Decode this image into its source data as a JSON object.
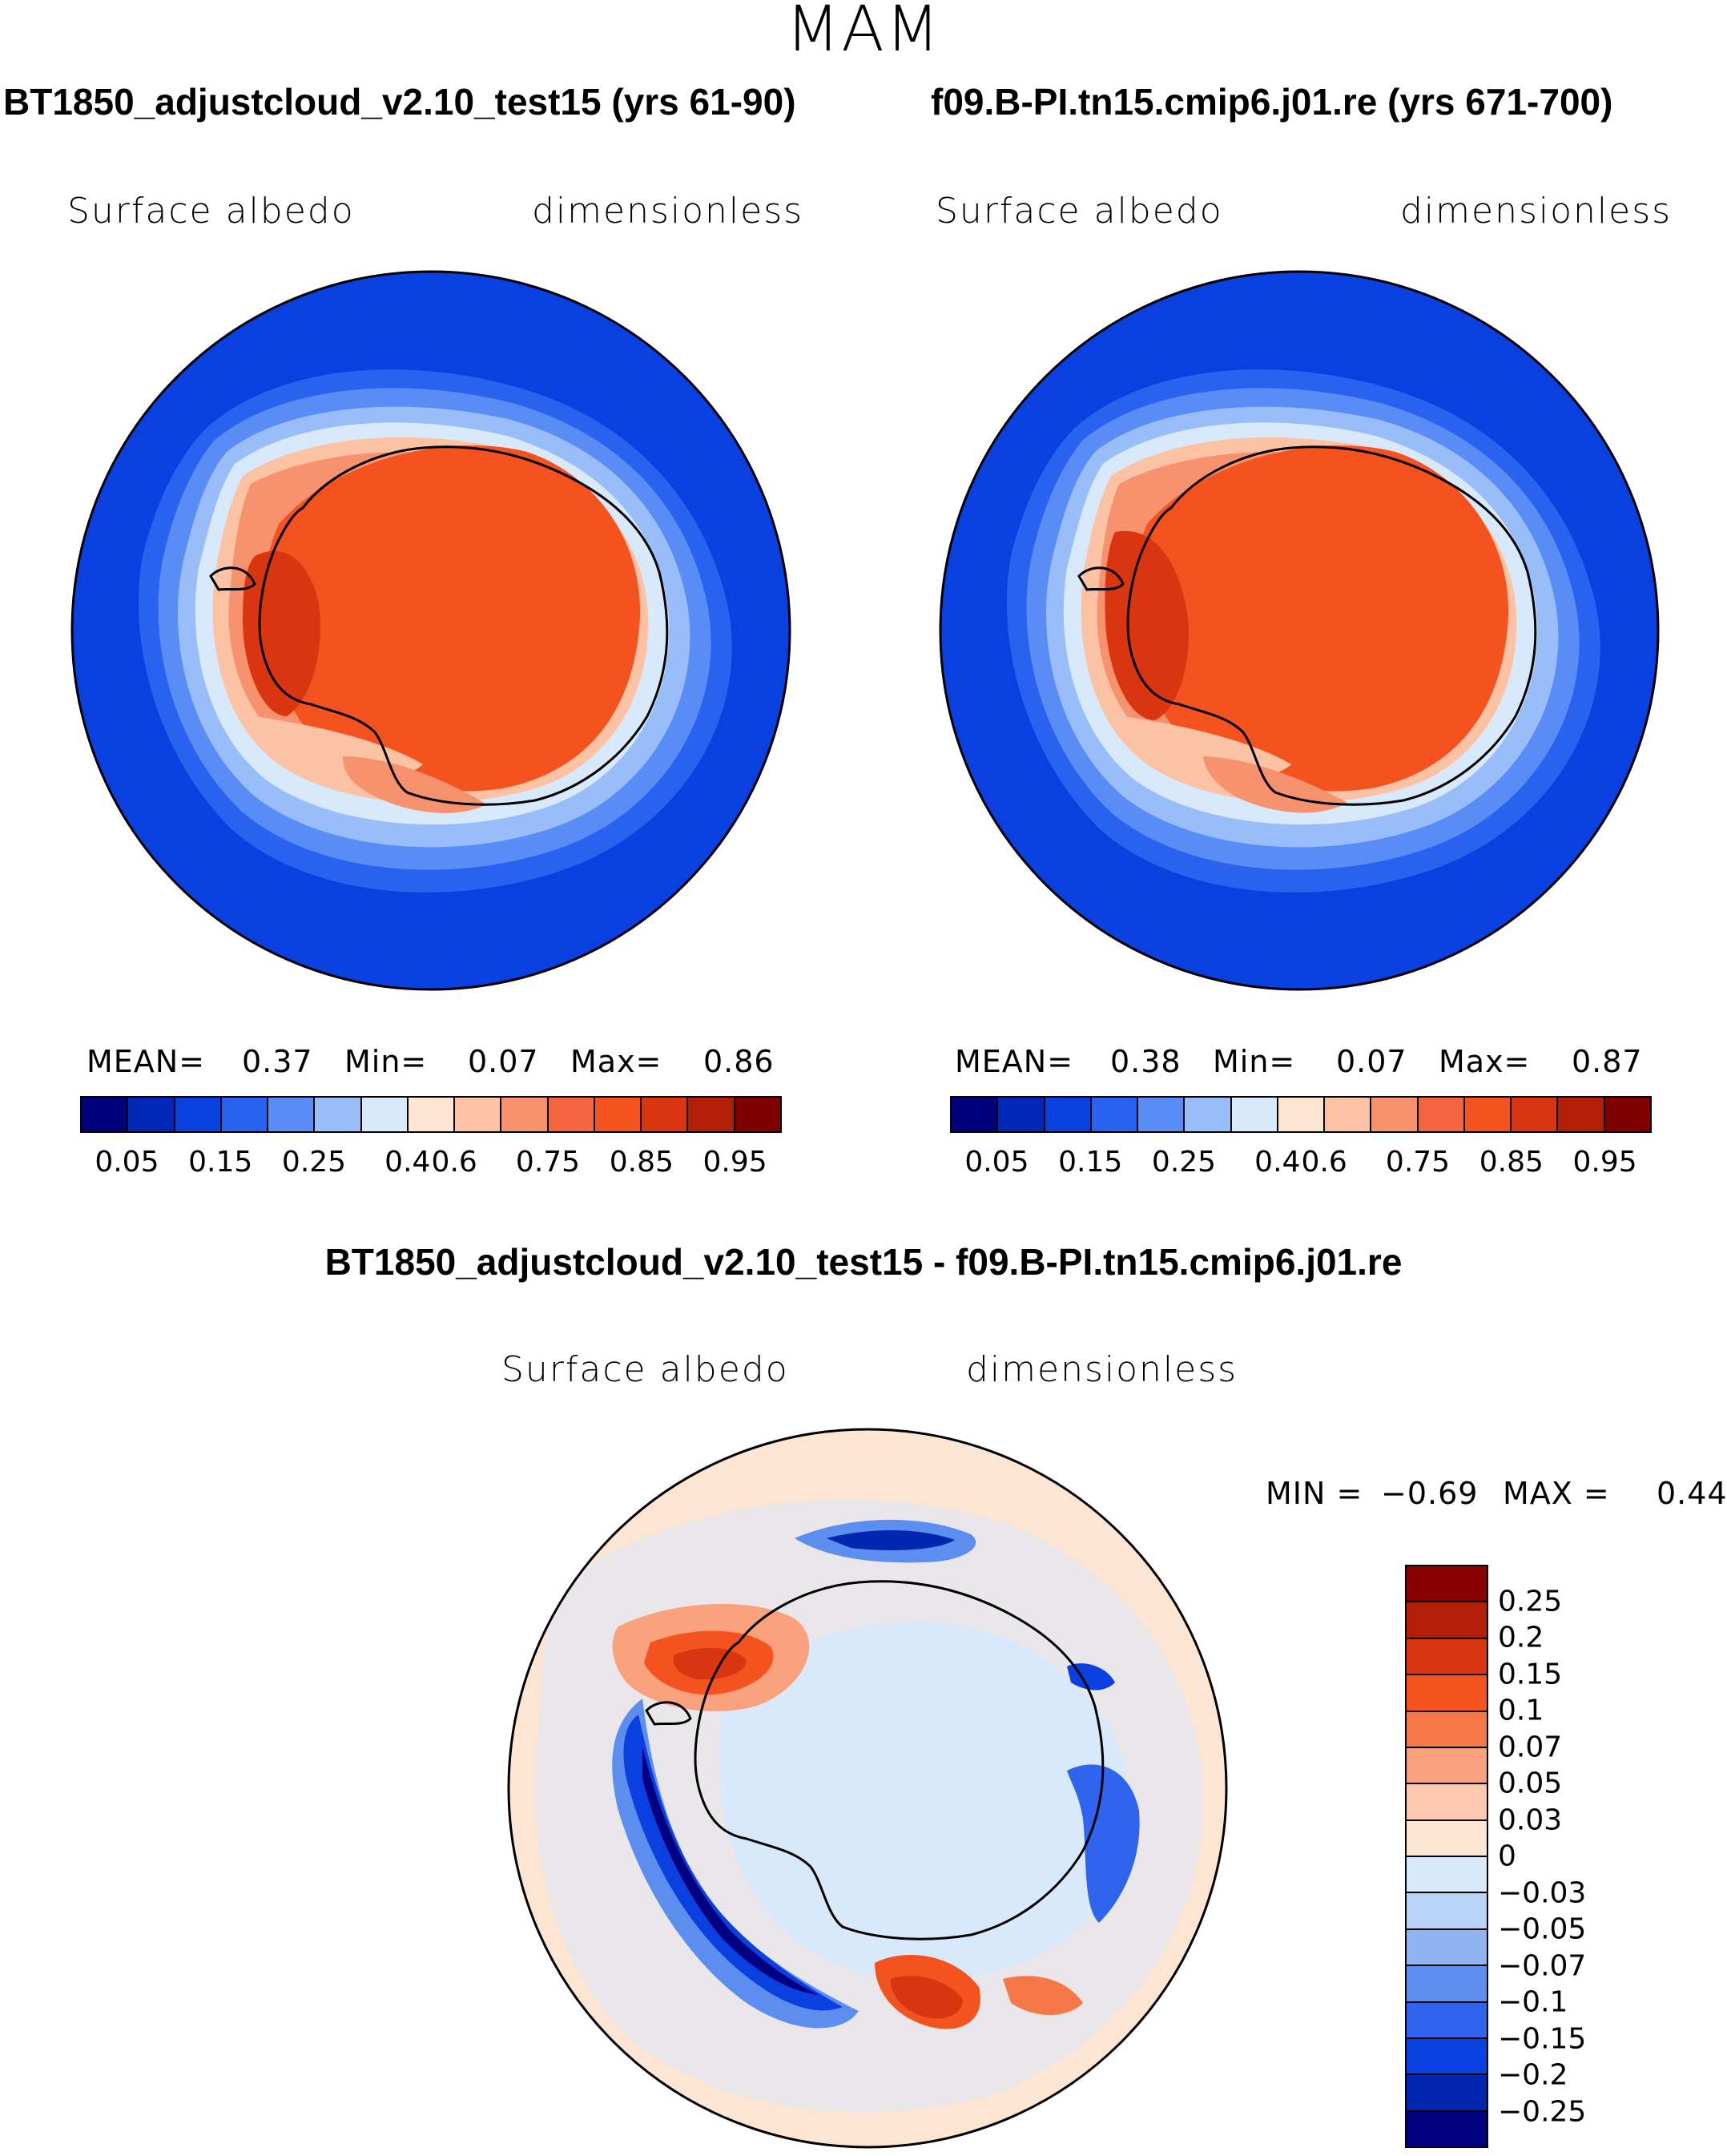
{
  "season": "MAM",
  "panels": [
    {
      "title": "BT1850_adjustcloud_v2.10_test15 (yrs 61-90)",
      "variable": "Surface albedo",
      "units": "dimensionless",
      "stats": {
        "mean_label": "MEAN=",
        "mean": "0.37",
        "min_label": "Min=",
        "min": "0.07",
        "max_label": "Max=",
        "max": "0.86"
      }
    },
    {
      "title": "f09.B-PI.tn15.cmip6.j01.re (yrs 671-700)",
      "variable": "Surface albedo",
      "units": "dimensionless",
      "stats": {
        "mean_label": "MEAN=",
        "mean": "0.38",
        "min_label": "Min=",
        "min": "0.07",
        "max_label": "Max=",
        "max": "0.87"
      }
    }
  ],
  "abs_colorbar": {
    "colors": [
      "#00007a",
      "#0027b5",
      "#0a3fe0",
      "#2a62f0",
      "#5a8cf5",
      "#98bdf8",
      "#d8e9fb",
      "#fde5d3",
      "#fbc2a4",
      "#f7926e",
      "#f4663f",
      "#f4521e",
      "#d83510",
      "#b41e08",
      "#800000"
    ],
    "ticks": [
      "0.05",
      "0.15",
      "0.25",
      "0.4",
      "0.6",
      "0.75",
      "0.85",
      "0.95"
    ]
  },
  "diff": {
    "title": "BT1850_adjustcloud_v2.10_test15 - f09.B-PI.tn15.cmip6.j01.re",
    "variable": "Surface albedo",
    "units": "dimensionless",
    "stats": {
      "min_label": "MIN =",
      "min": "−0.69",
      "max_label": "MAX =",
      "max": "0.44"
    }
  },
  "diff_colorbar": {
    "colors": [
      "#8a0000",
      "#b41e08",
      "#d83510",
      "#f4521e",
      "#f67748",
      "#f9a27d",
      "#fcc9b0",
      "#fde5d3",
      "#d8e9fb",
      "#b8d2f8",
      "#8fb3f3",
      "#5c8ef0",
      "#2e64ee",
      "#0a3fe0",
      "#0026b0",
      "#000080"
    ],
    "ticks": [
      "0.25",
      "0.2",
      "0.15",
      "0.1",
      "0.07",
      "0.05",
      "0.03",
      "0",
      "−0.03",
      "−0.05",
      "−0.07",
      "−0.1",
      "−0.15",
      "−0.2",
      "−0.25"
    ]
  }
}
